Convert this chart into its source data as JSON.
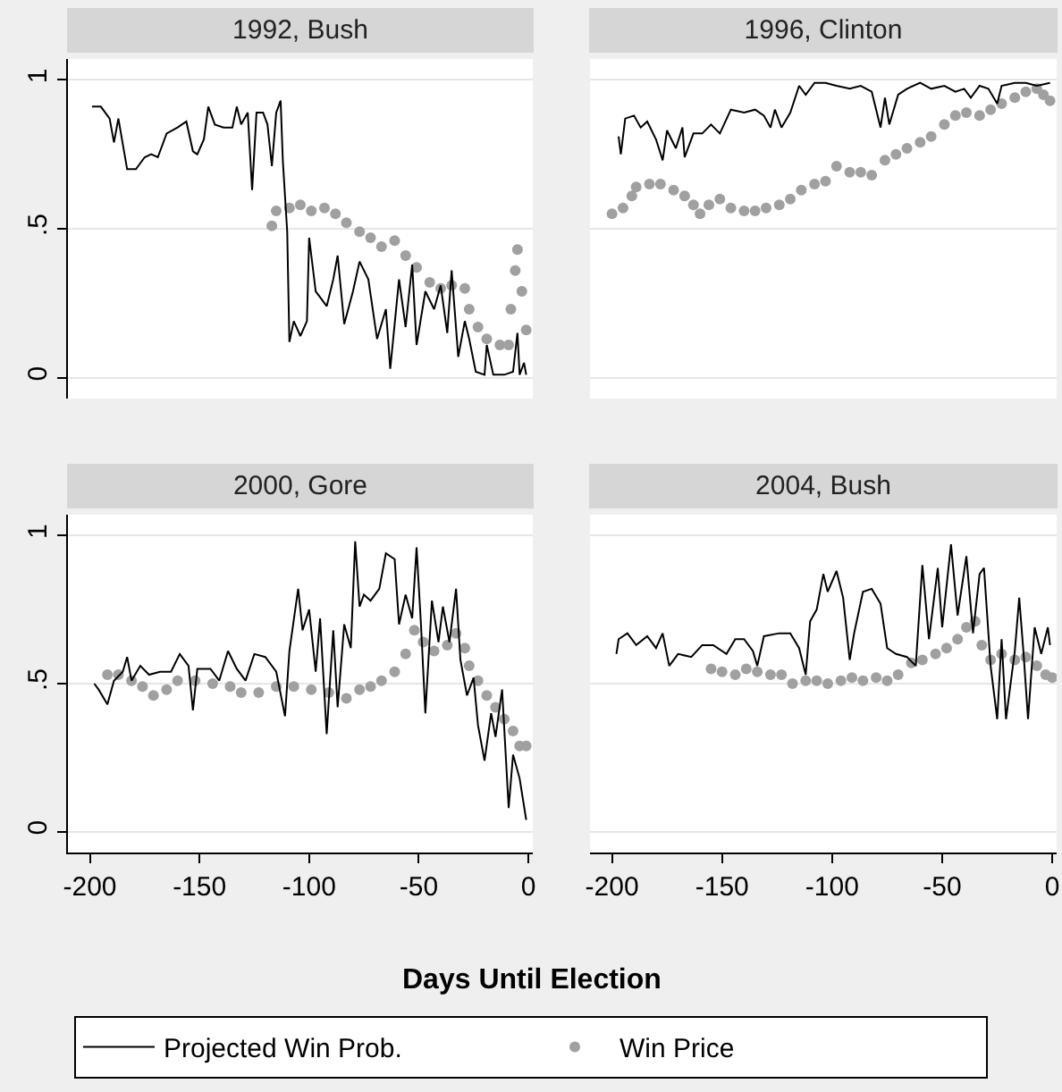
{
  "chart_data": [
    {
      "type": "line",
      "title": "1992, Bush",
      "xlim": [
        -210,
        2
      ],
      "ylim": [
        -0.07,
        1.07
      ],
      "yticks": [
        0,
        {
          "value": 0.5,
          "label": ".5"
        },
        1
      ],
      "tick_labels": "y",
      "grid": "y",
      "legend": "bottom",
      "series": [
        {
          "name": "Projected Win Prob.",
          "color": "#000000",
          "marker": "none",
          "x": [
            -199,
            -195,
            -191,
            -189,
            -187,
            -183,
            -179,
            -175,
            -172,
            -169,
            -165,
            -160,
            -156,
            -153,
            -151,
            -148,
            -146,
            -143,
            -139,
            -135,
            -133,
            -131,
            -128,
            -126,
            -124,
            -121,
            -119,
            -117,
            -115,
            -113,
            -112,
            -110,
            -109,
            -107,
            -104,
            -101,
            -100,
            -97,
            -95,
            -92,
            -89,
            -87,
            -84,
            -80,
            -77,
            -73,
            -69,
            -65,
            -63,
            -59,
            -56,
            -53,
            -51,
            -47,
            -43,
            -40,
            -37,
            -35,
            -32,
            -29,
            -27,
            -24,
            -20,
            -19,
            -16,
            -11,
            -7,
            -5,
            -4,
            -2,
            -1
          ],
          "values": [
            0.91,
            0.91,
            0.87,
            0.79,
            0.87,
            0.7,
            0.7,
            0.74,
            0.75,
            0.74,
            0.82,
            0.84,
            0.86,
            0.76,
            0.75,
            0.8,
            0.91,
            0.85,
            0.84,
            0.84,
            0.91,
            0.85,
            0.89,
            0.63,
            0.89,
            0.89,
            0.85,
            0.71,
            0.89,
            0.93,
            0.73,
            0.49,
            0.12,
            0.19,
            0.14,
            0.19,
            0.47,
            0.29,
            0.27,
            0.24,
            0.33,
            0.41,
            0.18,
            0.29,
            0.39,
            0.33,
            0.13,
            0.23,
            0.03,
            0.33,
            0.17,
            0.38,
            0.11,
            0.29,
            0.23,
            0.31,
            0.15,
            0.36,
            0.07,
            0.19,
            0.13,
            0.02,
            0.01,
            0.11,
            0.01,
            0.01,
            0.02,
            0.15,
            0.01,
            0.05,
            0.01
          ]
        },
        {
          "name": "Win Price",
          "type": "scatter",
          "color": "#a0a0a0",
          "marker": "circle",
          "x": [
            -117,
            -115,
            -109,
            -104,
            -99,
            -93,
            -88,
            -83,
            -77,
            -72,
            -67,
            -61,
            -56,
            -51,
            -45,
            -40,
            -35,
            -29,
            -27,
            -23,
            -19,
            -13,
            -9,
            -8,
            -6,
            -5,
            -3,
            -1
          ],
          "values": [
            0.51,
            0.56,
            0.57,
            0.58,
            0.56,
            0.57,
            0.55,
            0.52,
            0.49,
            0.47,
            0.44,
            0.46,
            0.41,
            0.37,
            0.32,
            0.3,
            0.31,
            0.3,
            0.23,
            0.17,
            0.13,
            0.11,
            0.11,
            0.23,
            0.36,
            0.43,
            0.29,
            0.16
          ]
        }
      ]
    },
    {
      "type": "line",
      "title": "1996, Clinton",
      "xlim": [
        -210,
        2
      ],
      "ylim": [
        -0.07,
        1.07
      ],
      "yticks": [
        {
          "value": 0,
          "label": null
        },
        {
          "value": 0.5,
          "label": null
        },
        {
          "value": 1,
          "label": null
        }
      ],
      "tick_labels": false,
      "grid": "y",
      "series": [
        {
          "color": "#000000",
          "marker": "none",
          "x": [
            -197,
            -196,
            -194,
            -190,
            -187,
            -184,
            -180,
            -177,
            -175,
            -171,
            -168,
            -167,
            -163,
            -159,
            -155,
            -151,
            -146,
            -140,
            -135,
            -131,
            -128,
            -126,
            -123,
            -119,
            -115,
            -112,
            -108,
            -103,
            -98,
            -92,
            -87,
            -82,
            -78,
            -76,
            -74,
            -70,
            -66,
            -60,
            -55,
            -49,
            -44,
            -40,
            -37,
            -33,
            -29,
            -25,
            -23,
            -17,
            -12,
            -7,
            -1
          ],
          "values": [
            0.81,
            0.75,
            0.87,
            0.88,
            0.84,
            0.86,
            0.8,
            0.73,
            0.83,
            0.77,
            0.84,
            0.74,
            0.82,
            0.82,
            0.85,
            0.82,
            0.9,
            0.89,
            0.9,
            0.88,
            0.84,
            0.9,
            0.84,
            0.89,
            0.98,
            0.95,
            0.99,
            0.99,
            0.98,
            0.97,
            0.98,
            0.96,
            0.84,
            0.94,
            0.85,
            0.95,
            0.97,
            0.99,
            0.97,
            0.98,
            0.96,
            0.97,
            0.94,
            0.98,
            0.97,
            0.92,
            0.98,
            0.99,
            0.99,
            0.98,
            0.99
          ]
        },
        {
          "type": "scatter",
          "color": "#a0a0a0",
          "marker": "circle",
          "x": [
            -200,
            -195,
            -191,
            -189,
            -183,
            -178,
            -172,
            -167,
            -163,
            -160,
            -156,
            -151,
            -146,
            -140,
            -135,
            -130,
            -124,
            -119,
            -114,
            -108,
            -103,
            -98,
            -92,
            -87,
            -82,
            -76,
            -71,
            -66,
            -60,
            -55,
            -49,
            -44,
            -39,
            -33,
            -28,
            -23,
            -17,
            -12,
            -7,
            -4,
            -1
          ],
          "values": [
            0.55,
            0.57,
            0.61,
            0.64,
            0.65,
            0.65,
            0.63,
            0.61,
            0.58,
            0.55,
            0.58,
            0.6,
            0.57,
            0.56,
            0.56,
            0.57,
            0.58,
            0.6,
            0.63,
            0.65,
            0.66,
            0.71,
            0.69,
            0.69,
            0.68,
            0.73,
            0.75,
            0.77,
            0.79,
            0.81,
            0.85,
            0.88,
            0.89,
            0.88,
            0.9,
            0.92,
            0.94,
            0.96,
            0.97,
            0.95,
            0.93
          ]
        }
      ]
    },
    {
      "type": "line",
      "title": "2000, Gore",
      "xlabel": "Days Until Election",
      "xlim": [
        -210,
        2
      ],
      "ylim": [
        -0.07,
        1.07
      ],
      "xticks": [
        -200,
        -150,
        -100,
        -50,
        0
      ],
      "yticks": [
        0,
        {
          "value": 0.5,
          "label": ".5"
        },
        1
      ],
      "grid": "y",
      "series": [
        {
          "color": "#000000",
          "marker": "none",
          "x": [
            -198,
            -196,
            -192,
            -189,
            -185,
            -183,
            -181,
            -177,
            -173,
            -168,
            -163,
            -159,
            -155,
            -153,
            -151,
            -145,
            -141,
            -137,
            -133,
            -129,
            -125,
            -120,
            -115,
            -111,
            -109,
            -105,
            -103,
            -100,
            -97,
            -95,
            -92,
            -89,
            -87,
            -84,
            -81,
            -79,
            -77,
            -75,
            -72,
            -68,
            -65,
            -61,
            -59,
            -56,
            -53,
            -51,
            -49,
            -47,
            -44,
            -41,
            -39,
            -36,
            -33,
            -31,
            -28,
            -25,
            -23,
            -20,
            -17,
            -15,
            -12,
            -9,
            -7,
            -4,
            -1
          ],
          "values": [
            0.5,
            0.48,
            0.43,
            0.51,
            0.54,
            0.59,
            0.51,
            0.56,
            0.53,
            0.54,
            0.54,
            0.6,
            0.56,
            0.41,
            0.55,
            0.55,
            0.51,
            0.61,
            0.55,
            0.51,
            0.6,
            0.59,
            0.54,
            0.39,
            0.61,
            0.82,
            0.68,
            0.75,
            0.54,
            0.72,
            0.33,
            0.68,
            0.42,
            0.7,
            0.62,
            0.98,
            0.76,
            0.8,
            0.78,
            0.82,
            0.94,
            0.92,
            0.7,
            0.8,
            0.72,
            0.96,
            0.7,
            0.4,
            0.78,
            0.64,
            0.76,
            0.64,
            0.82,
            0.58,
            0.46,
            0.52,
            0.36,
            0.24,
            0.4,
            0.32,
            0.48,
            0.08,
            0.26,
            0.18,
            0.04
          ]
        },
        {
          "type": "scatter",
          "color": "#a0a0a0",
          "marker": "circle",
          "x": [
            -192,
            -187,
            -181,
            -176,
            -171,
            -165,
            -160,
            -152,
            -144,
            -136,
            -131,
            -123,
            -115,
            -107,
            -99,
            -91,
            -83,
            -77,
            -72,
            -67,
            -61,
            -56,
            -52,
            -48,
            -43,
            -37,
            -33,
            -29,
            -27,
            -23,
            -19,
            -15,
            -11,
            -7,
            -4,
            -1
          ],
          "values": [
            0.53,
            0.53,
            0.51,
            0.49,
            0.46,
            0.48,
            0.51,
            0.51,
            0.5,
            0.49,
            0.47,
            0.47,
            0.49,
            0.49,
            0.48,
            0.47,
            0.45,
            0.48,
            0.49,
            0.51,
            0.54,
            0.6,
            0.68,
            0.64,
            0.61,
            0.63,
            0.67,
            0.62,
            0.56,
            0.51,
            0.46,
            0.42,
            0.38,
            0.34,
            0.29,
            0.29
          ]
        }
      ]
    },
    {
      "type": "line",
      "title": "2004, Bush",
      "xlim": [
        -210,
        2
      ],
      "ylim": [
        -0.07,
        1.07
      ],
      "xticks": [
        -200,
        -150,
        -100,
        -50,
        0
      ],
      "yticks": [
        {
          "value": 0,
          "label": null
        },
        {
          "value": 0.5,
          "label": null
        },
        {
          "value": 1,
          "label": null
        }
      ],
      "tick_labels": "x",
      "grid": "y",
      "series": [
        {
          "color": "#000000",
          "marker": "none",
          "x": [
            -198,
            -197,
            -193,
            -189,
            -184,
            -180,
            -177,
            -174,
            -170,
            -164,
            -159,
            -154,
            -148,
            -144,
            -140,
            -136,
            -134,
            -131,
            -124,
            -119,
            -115,
            -112,
            -110,
            -107,
            -104,
            -102,
            -98,
            -95,
            -92,
            -90,
            -86,
            -82,
            -78,
            -75,
            -71,
            -66,
            -62,
            -59,
            -56,
            -52,
            -50,
            -46,
            -43,
            -39,
            -36,
            -33,
            -31,
            -28,
            -25,
            -23,
            -21,
            -17,
            -15,
            -13,
            -11,
            -8,
            -5,
            -2,
            -1
          ],
          "values": [
            0.6,
            0.65,
            0.67,
            0.63,
            0.66,
            0.62,
            0.67,
            0.56,
            0.6,
            0.59,
            0.63,
            0.63,
            0.6,
            0.65,
            0.65,
            0.61,
            0.56,
            0.66,
            0.67,
            0.67,
            0.62,
            0.53,
            0.71,
            0.75,
            0.87,
            0.81,
            0.88,
            0.79,
            0.58,
            0.67,
            0.81,
            0.82,
            0.77,
            0.62,
            0.6,
            0.59,
            0.56,
            0.9,
            0.65,
            0.89,
            0.69,
            0.97,
            0.73,
            0.93,
            0.67,
            0.87,
            0.89,
            0.56,
            0.38,
            0.65,
            0.38,
            0.61,
            0.79,
            0.6,
            0.38,
            0.69,
            0.6,
            0.69,
            0.63
          ]
        },
        {
          "type": "scatter",
          "color": "#a0a0a0",
          "marker": "circle",
          "x": [
            -155,
            -150,
            -144,
            -139,
            -134,
            -128,
            -123,
            -118,
            -112,
            -107,
            -102,
            -96,
            -91,
            -86,
            -80,
            -75,
            -70,
            -64,
            -59,
            -53,
            -48,
            -43,
            -39,
            -35,
            -32,
            -28,
            -23,
            -17,
            -12,
            -7,
            -3,
            0
          ],
          "values": [
            0.55,
            0.54,
            0.53,
            0.55,
            0.54,
            0.53,
            0.53,
            0.5,
            0.51,
            0.51,
            0.5,
            0.51,
            0.52,
            0.51,
            0.52,
            0.51,
            0.53,
            0.57,
            0.58,
            0.6,
            0.62,
            0.65,
            0.69,
            0.71,
            0.63,
            0.58,
            0.6,
            0.58,
            0.59,
            0.56,
            0.53,
            0.52
          ]
        }
      ]
    }
  ]
}
